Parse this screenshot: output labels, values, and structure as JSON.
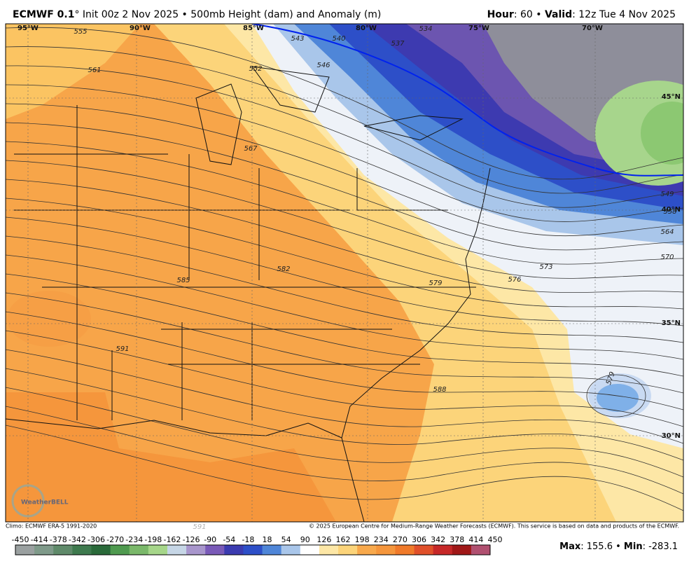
{
  "header": {
    "model": "ECMWF 0.1",
    "title_rest": "° Init 00z 2 Nov 2025 • 500mb Height (dam) and Anomaly (m)",
    "hour_label": "Hour",
    "hour_rest": ": 60 • ",
    "valid_label": "Valid",
    "valid_rest": ": 12z Tue 4 Nov 2025"
  },
  "map": {
    "longitudes": [
      "95°W",
      "90°W",
      "85°W",
      "80°W",
      "75°W",
      "70°W"
    ],
    "latitudes": [
      "45°N",
      "40°N",
      "35°N",
      "30°N"
    ],
    "contour_labels": [
      "555",
      "561",
      "567",
      "585",
      "591",
      "582",
      "579",
      "576",
      "573",
      "570",
      "564",
      "558",
      "549",
      "543",
      "546",
      "552",
      "540",
      "537",
      "534",
      "588",
      "579",
      "591"
    ]
  },
  "footer": {
    "climo": "Climo: ECMWF ERA-5 1991-2020",
    "copyright": "© 2025 European Centre for Medium-Range Weather Forecasts (ECMWF). This service is based on data and products of the ECMWF.",
    "logo": "WeatherBELL"
  },
  "colorbar": {
    "ticks": [
      -450,
      -414,
      -378,
      -342,
      -306,
      -270,
      -234,
      -198,
      -162,
      -126,
      -90,
      -54,
      -18,
      18,
      54,
      90,
      126,
      162,
      198,
      234,
      270,
      306,
      342,
      378,
      414,
      450
    ]
  },
  "stats": {
    "max_label": "Max",
    "max_value": ": 155.6 • ",
    "min_label": "Min",
    "min_value": ": -283.1"
  }
}
